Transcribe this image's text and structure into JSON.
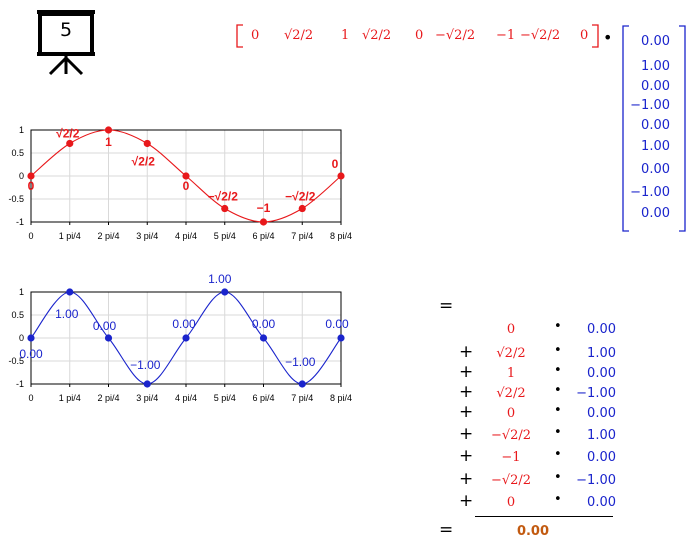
{
  "slide_icon": {
    "number": "5"
  },
  "row_vector": [
    "0",
    "√2/2",
    "1",
    "√2/2",
    "0",
    "−√2/2",
    "−1",
    "−√2/2",
    "0"
  ],
  "dot_symbol": "•",
  "column_vector": [
    "0.00",
    "1.00",
    "0.00",
    "−1.00",
    "0.00",
    "1.00",
    "0.00",
    "−1.00",
    "0.00"
  ],
  "chart_data": [
    {
      "type": "line",
      "x": [
        0,
        1,
        2,
        3,
        4,
        5,
        6,
        7,
        8
      ],
      "series": [
        {
          "values": [
            0,
            0.7071,
            1,
            0.7071,
            0,
            -0.7071,
            -1,
            -0.7071,
            0
          ],
          "color": "#e8181b"
        }
      ],
      "point_labels": [
        "0",
        "√2/2",
        "1",
        "√2/2",
        "0",
        "−√2/2",
        "−1",
        "−√2/2",
        "0"
      ],
      "x_tick_labels": [
        "0",
        "1 pi/4",
        "2 pi/4",
        "3 pi/4",
        "4 pi/4",
        "5 pi/4",
        "6 pi/4",
        "7 pi/4",
        "8 pi/4"
      ],
      "y_tick_labels": [
        "1",
        "0.5",
        "0",
        "-0.5",
        "-1"
      ],
      "xlim": [
        0,
        8
      ],
      "ylim": [
        -1,
        1
      ],
      "grid": true
    },
    {
      "type": "line",
      "x": [
        0,
        1,
        2,
        3,
        4,
        5,
        6,
        7,
        8
      ],
      "series": [
        {
          "values": [
            0,
            1,
            0,
            -1,
            0,
            1,
            0,
            -1,
            0
          ],
          "color": "#1a24cc"
        }
      ],
      "point_labels": [
        "0.00",
        "1.00",
        "0.00",
        "−1.00",
        "0.00",
        "1.00",
        "0.00",
        "−1.00",
        "0.00"
      ],
      "x_tick_labels": [
        "0",
        "1 pi/4",
        "2 pi/4",
        "3 pi/4",
        "4 pi/4",
        "5 pi/4",
        "6 pi/4",
        "7 pi/4",
        "8 pi/4"
      ],
      "y_tick_labels": [
        "1",
        "0.5",
        "0",
        "-0.5",
        "-1"
      ],
      "xlim": [
        0,
        8
      ],
      "ylim": [
        -1,
        1
      ],
      "grid": true
    }
  ],
  "sum": {
    "equals": "=",
    "plus": "+",
    "dot": "•",
    "rows": [
      {
        "a": "0",
        "b": "0.00"
      },
      {
        "a": "√2/2",
        "b": "1.00"
      },
      {
        "a": "1",
        "b": "0.00"
      },
      {
        "a": "√2/2",
        "b": "−1.00"
      },
      {
        "a": "0",
        "b": "0.00"
      },
      {
        "a": "−√2/2",
        "b": "1.00"
      },
      {
        "a": "−1",
        "b": "0.00"
      },
      {
        "a": "−√2/2",
        "b": "−1.00"
      },
      {
        "a": "0",
        "b": "0.00"
      }
    ],
    "result": "0.00",
    "result_color": "#c25a10"
  }
}
